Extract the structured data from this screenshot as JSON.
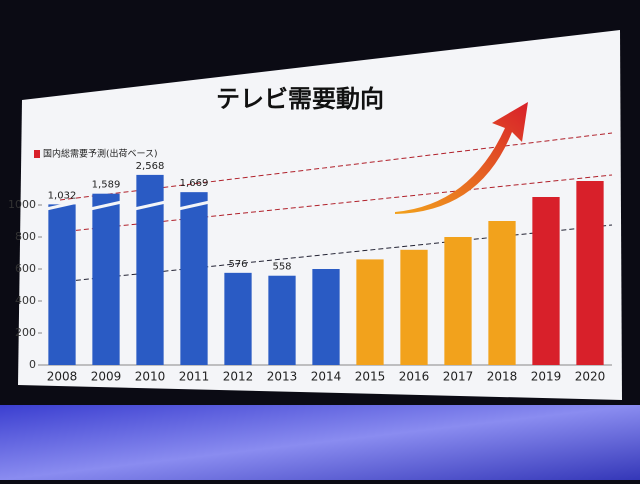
{
  "chart_data": {
    "type": "bar",
    "title": "テレビ需要動向",
    "subtitle": "国内総需要予測(出荷ベース)",
    "categories": [
      "2008",
      "2009",
      "2010",
      "2011",
      "2012",
      "2013",
      "2014",
      "2015",
      "2016",
      "2017",
      "2018",
      "2019",
      "2020"
    ],
    "values": [
      1032,
      1589,
      2568,
      1669,
      576,
      558,
      600,
      660,
      720,
      800,
      900,
      1050,
      1150
    ],
    "value_labels": [
      "1,032",
      "1,589",
      "2,568",
      "1,669",
      "576",
      "558",
      null,
      null,
      null,
      null,
      null,
      null,
      null
    ],
    "colors": [
      "#2a5bc4",
      "#2a5bc4",
      "#2a5bc4",
      "#2a5bc4",
      "#2a5bc4",
      "#2a5bc4",
      "#2a5bc4",
      "#f2a21c",
      "#f2a21c",
      "#f2a21c",
      "#f2a21c",
      "#d8202a",
      "#d8202a"
    ],
    "ylim": [
      0,
      1200
    ],
    "yticks": [
      0,
      200,
      400,
      600,
      800,
      1000
    ]
  }
}
